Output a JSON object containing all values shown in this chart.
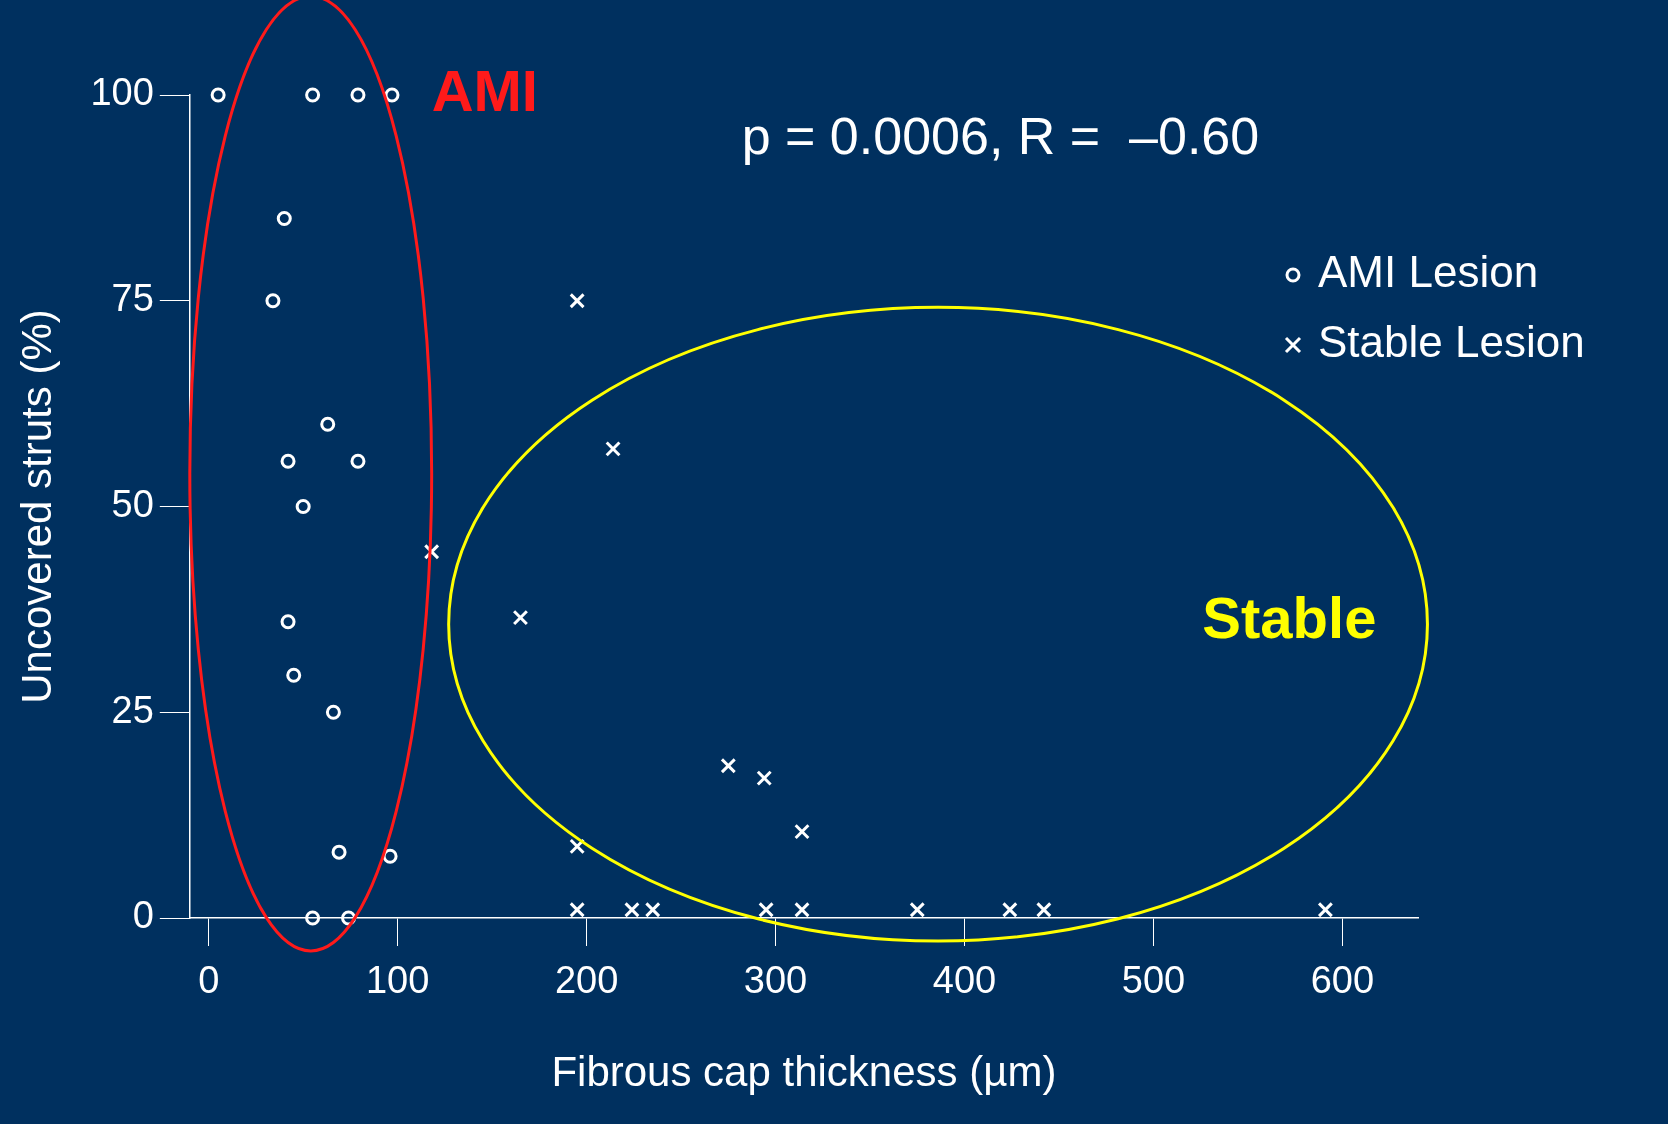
{
  "chart_data": {
    "type": "scatter",
    "xlabel": "Fibrous cap thickness (µm)",
    "ylabel": "Uncovered struts (%)",
    "xlim": [
      -10,
      640
    ],
    "xticks": [
      0,
      100,
      200,
      300,
      400,
      500,
      600
    ],
    "ylim": [
      0,
      100
    ],
    "yticks": [
      0,
      25,
      50,
      75,
      100
    ],
    "grid": false,
    "legend": "top right",
    "annotations": [
      "p = 0.0006, R =  –0.60",
      "AMI",
      "Stable"
    ],
    "series": [
      {
        "name": "AMI Lesion",
        "color": "#ffffff",
        "marker": "circle",
        "x": [
          5,
          55,
          79,
          97,
          40,
          34,
          63,
          42,
          79,
          50,
          42,
          45,
          66,
          69,
          96,
          55,
          74
        ],
        "values": [
          100,
          100,
          100,
          100,
          85,
          75,
          60,
          55.5,
          55.5,
          50,
          36,
          29.5,
          25,
          8,
          7.5,
          0,
          0
        ]
      },
      {
        "name": "Stable Lesion",
        "color": "#ffffff",
        "marker": "cross",
        "x": [
          195,
          214,
          118,
          165,
          275,
          294,
          314,
          195,
          195,
          224,
          235,
          295,
          314,
          375,
          424,
          442,
          591
        ],
        "values": [
          75,
          57,
          44.5,
          36.5,
          18.5,
          17,
          10.5,
          8.7,
          1,
          1,
          1,
          1,
          1,
          1,
          1,
          1,
          1
        ]
      }
    ]
  }
}
